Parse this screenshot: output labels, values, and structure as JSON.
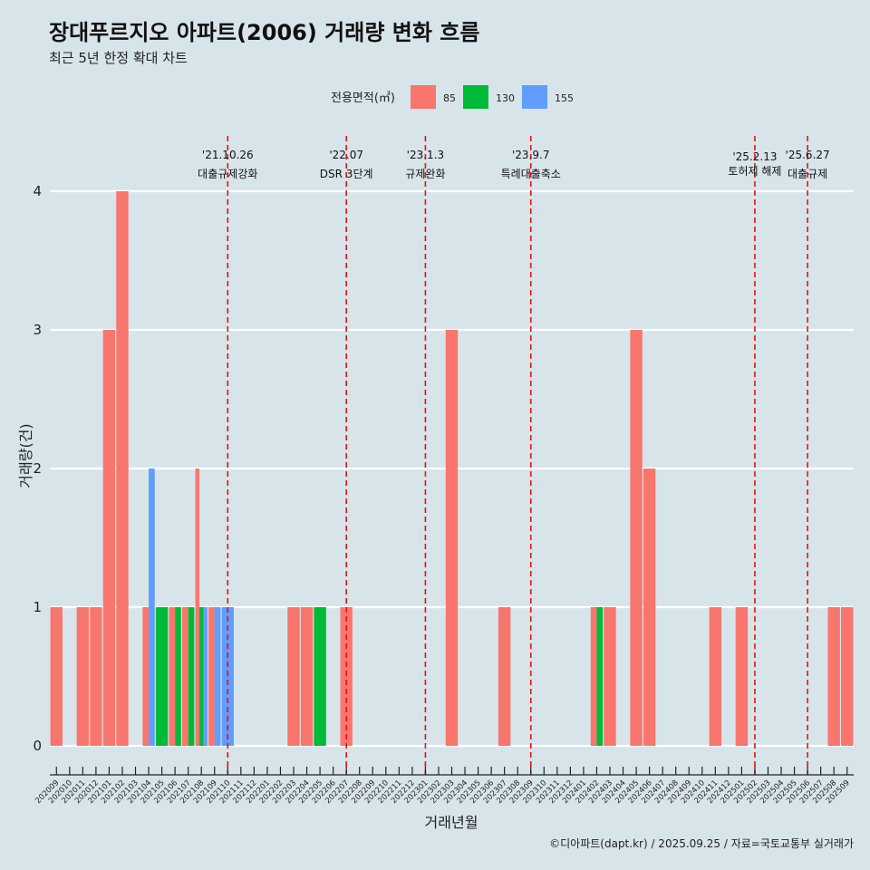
{
  "chart_data": {
    "type": "bar",
    "title": "장대푸르지오 아파트(2006) 거래량 변화 흐름",
    "subtitle": "최근 5년 한정 확대 차트",
    "xlabel": "거래년월",
    "ylabel": "거래량(건)",
    "ylim": [
      -0.2,
      4.4
    ],
    "yticks": [
      0,
      1,
      2,
      3,
      4
    ],
    "legend": {
      "title": "전용면적(㎡)",
      "position": "top",
      "entries": [
        {
          "name": "85",
          "color": "#f8766d"
        },
        {
          "name": "130",
          "color": "#00ba38"
        },
        {
          "name": "155",
          "color": "#619cff"
        }
      ]
    },
    "categories": [
      "202009",
      "202010",
      "202011",
      "202012",
      "202101",
      "202102",
      "202103",
      "202104",
      "202105",
      "202106",
      "202107",
      "202108",
      "202109",
      "202110",
      "202111",
      "202112",
      "202201",
      "202202",
      "202203",
      "202204",
      "202205",
      "202206",
      "202207",
      "202208",
      "202209",
      "202210",
      "202211",
      "202212",
      "202301",
      "202302",
      "202303",
      "202304",
      "202305",
      "202306",
      "202307",
      "202308",
      "202309",
      "202310",
      "202311",
      "202312",
      "202401",
      "202402",
      "202403",
      "202404",
      "202405",
      "202406",
      "202407",
      "202408",
      "202409",
      "202410",
      "202411",
      "202412",
      "202501",
      "202502",
      "202503",
      "202504",
      "202505",
      "202506",
      "202507",
      "202508",
      "202509"
    ],
    "series": [
      {
        "name": "85",
        "color": "#f8766d",
        "values": [
          1,
          0,
          1,
          1,
          3,
          4,
          0,
          1,
          0,
          1,
          1,
          2,
          1,
          0,
          0,
          0,
          0,
          0,
          1,
          1,
          0,
          0,
          1,
          0,
          0,
          0,
          0,
          0,
          0,
          0,
          3,
          0,
          0,
          0,
          1,
          0,
          0,
          0,
          0,
          0,
          0,
          1,
          1,
          0,
          3,
          2,
          0,
          0,
          0,
          0,
          1,
          0,
          1,
          0,
          0,
          0,
          0,
          0,
          0,
          1,
          1
        ]
      },
      {
        "name": "130",
        "color": "#00ba38",
        "values": [
          0,
          0,
          0,
          0,
          0,
          0,
          0,
          0,
          1,
          1,
          1,
          1,
          0,
          0,
          0,
          0,
          0,
          0,
          0,
          0,
          1,
          0,
          0,
          0,
          0,
          0,
          0,
          0,
          0,
          0,
          0,
          0,
          0,
          0,
          0,
          0,
          0,
          0,
          0,
          0,
          0,
          1,
          0,
          0,
          0,
          0,
          0,
          0,
          0,
          0,
          0,
          0,
          0,
          0,
          0,
          0,
          0,
          0,
          0,
          0,
          0
        ]
      },
      {
        "name": "155",
        "color": "#619cff",
        "values": [
          0,
          0,
          0,
          0,
          0,
          0,
          0,
          2,
          0,
          0,
          0,
          1,
          1,
          1,
          0,
          0,
          0,
          0,
          0,
          0,
          0,
          0,
          0,
          0,
          0,
          0,
          0,
          0,
          0,
          0,
          0,
          0,
          0,
          0,
          0,
          0,
          0,
          0,
          0,
          0,
          0,
          0,
          0,
          0,
          0,
          0,
          0,
          0,
          0,
          0,
          0,
          0,
          0,
          0,
          0,
          0,
          0,
          0,
          0,
          0,
          0
        ]
      }
    ],
    "events": [
      {
        "date": "'21.10.26",
        "label": "대출규제강화",
        "at": "202110"
      },
      {
        "date": "'22.07",
        "label": "DSR 3단계",
        "at": "202207"
      },
      {
        "date": "'23.1.3",
        "label": "규제완화",
        "at": "202301"
      },
      {
        "date": "'23.9.7",
        "label": "특례대출축소",
        "at": "202309"
      },
      {
        "date": "'25.2.13",
        "label": "토허제 해제",
        "at": "202502"
      },
      {
        "date": "'25.6.27",
        "label": "대출규제",
        "at": "202506"
      }
    ],
    "caption": "©디아파트(dapt.kr) / 2025.09.25 / 자료=국토교통부 실거래가"
  }
}
